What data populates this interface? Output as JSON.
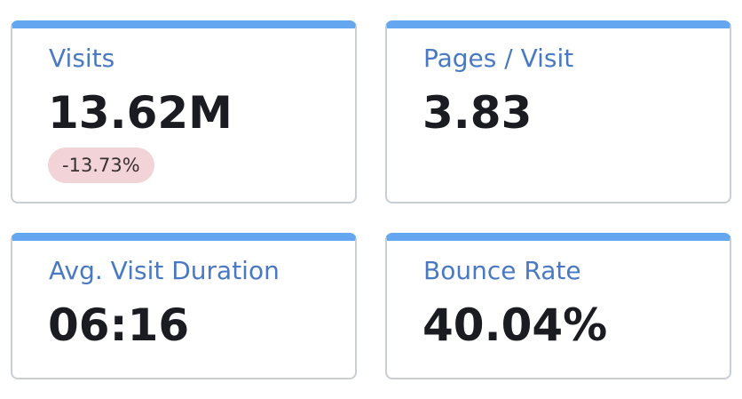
{
  "metrics": [
    {
      "label": "Visits",
      "value": "13.62M",
      "change": "-13.73%",
      "change_color": "#f2d4d8"
    },
    {
      "label": "Pages / Visit",
      "value": "3.83"
    },
    {
      "label": "Avg. Visit Duration",
      "value": "06:16"
    },
    {
      "label": "Bounce Rate",
      "value": "40.04%"
    }
  ],
  "colors": {
    "accent_bar": "#64a6f0",
    "label_text": "#4a79c4",
    "value_text": "#1a1c22",
    "card_border": "#c9cdd4"
  }
}
